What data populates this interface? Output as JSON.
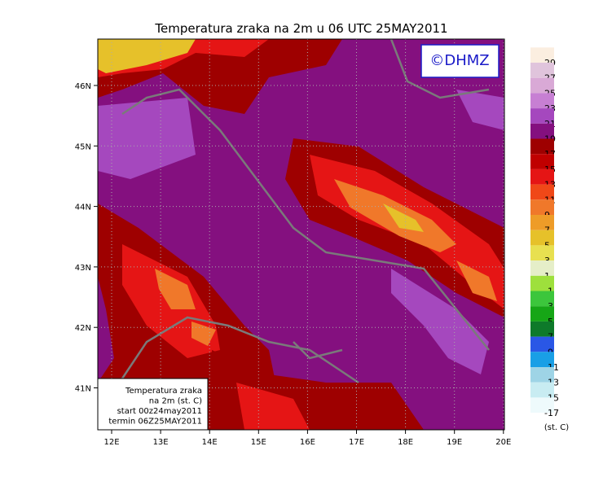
{
  "map": {
    "title": "Temperatura zraka na 2m u 06 UTC 25MAY2011",
    "logo": "©DHMZ",
    "lon_labels": [
      "12E",
      "13E",
      "14E",
      "15E",
      "16E",
      "17E",
      "18E",
      "19E",
      "20E"
    ],
    "lat_labels": [
      "46N",
      "45N",
      "44N",
      "43N",
      "42N",
      "41N"
    ],
    "info_box": [
      "Temperatura zraka",
      "na 2m (st. C)",
      "start 00z24may2011",
      "termin 06Z25MAY2011"
    ],
    "colorbar": {
      "unit": "(st. C)",
      "levels": [
        29,
        27,
        25,
        23,
        21,
        19,
        17,
        15,
        13,
        11,
        9,
        7,
        5,
        3,
        1,
        -1,
        -3,
        -5,
        -7,
        -9,
        -11,
        -13,
        -15,
        -17
      ],
      "colors": [
        "#fbeee0",
        "#e0c4dc",
        "#d9a9d6",
        "#c77fd3",
        "#a548be",
        "#84107f",
        "#9e0000",
        "#c00000",
        "#e51515",
        "#f04818",
        "#f0782a",
        "#ee9c28",
        "#e6c12a",
        "#e8e050",
        "#e5eec8",
        "#9ee03c",
        "#3cc63c",
        "#16a616",
        "#0e7a2a",
        "#2a57e6",
        "#199fe6",
        "#9ed4e6",
        "#c8ecf2",
        "#eefafc"
      ]
    }
  }
}
